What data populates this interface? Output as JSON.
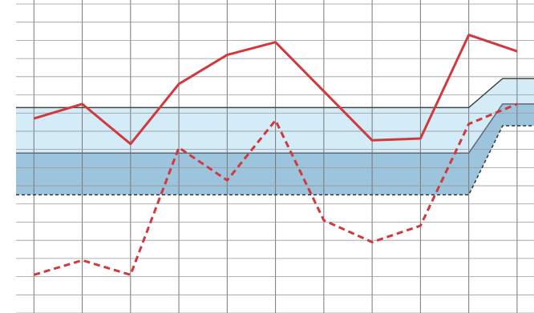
{
  "chart_data": {
    "type": "line",
    "x": [
      0,
      1,
      2,
      3,
      4,
      5,
      6,
      7,
      8,
      9,
      10
    ],
    "xlim": [
      -0.37,
      10.35
    ],
    "ylim": [
      0,
      17
    ],
    "grid": true,
    "series": [
      {
        "color": "#d0393e",
        "dash": false,
        "values": [
          10.7,
          11.5,
          9.3,
          12.6,
          14.2,
          14.9,
          12.2,
          9.5,
          9.6,
          15.3,
          14.4
        ]
      },
      {
        "color": "#d0393e",
        "dash": true,
        "values": [
          2.1,
          2.9,
          2.1,
          9.1,
          7.3,
          10.6,
          5.1,
          3.9,
          4.8,
          10.4,
          11.5
        ]
      }
    ],
    "bands": [
      {
        "color": "#d3ecf7",
        "x": [
          -0.37,
          9,
          9.7,
          10.35
        ],
        "upper": [
          11.3,
          11.3,
          12.9,
          12.9
        ],
        "lower": [
          8.8,
          8.8,
          11.5,
          11.5
        ]
      },
      {
        "color": "#9cc4dc",
        "x": [
          -0.37,
          9,
          9.7,
          10.35
        ],
        "upper": [
          8.8,
          8.8,
          11.5,
          11.5
        ],
        "lower": [
          6.5,
          6.5,
          10.3,
          10.3
        ]
      }
    ]
  }
}
